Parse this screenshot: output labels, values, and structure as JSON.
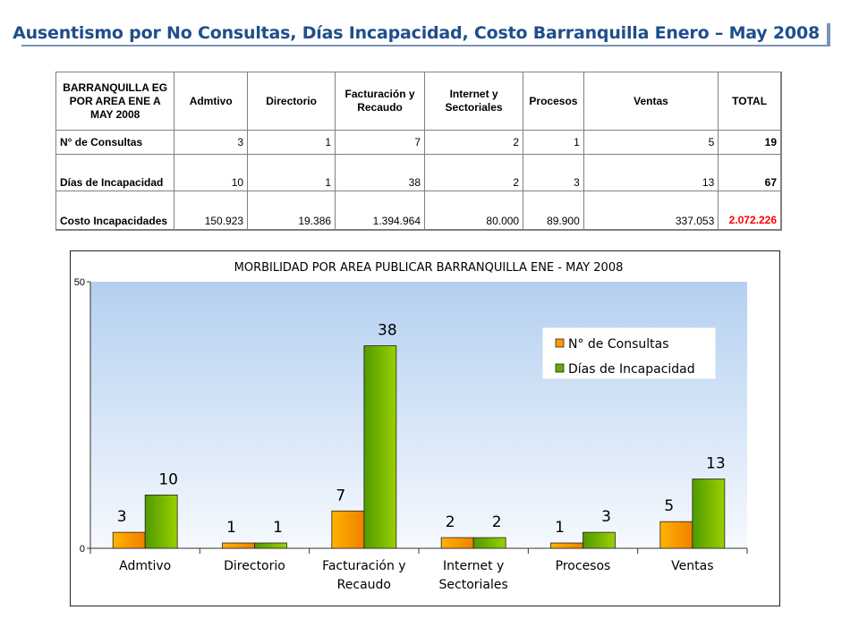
{
  "page": {
    "title": "Ausentismo por No Consultas, Días Incapacidad, Costo Barranquilla Enero – May 2008"
  },
  "table": {
    "corner": "BARRANQUILLA EG POR AREA ENE A MAY 2008",
    "headers": [
      "Admtivo",
      "Directorio",
      "Facturación y Recaudo",
      "Internet y Sectoriales",
      "Procesos",
      "Ventas",
      "TOTAL"
    ],
    "rows": [
      {
        "label": "N° de Consultas",
        "values": [
          "3",
          "1",
          "7",
          "2",
          "1",
          "5"
        ],
        "total": "19"
      },
      {
        "label": "Días de Incapacidad",
        "values": [
          "10",
          "1",
          "38",
          "2",
          "3",
          "13"
        ],
        "total": "67"
      },
      {
        "label": "Costo Incapacidades",
        "values": [
          "150.923",
          "19.386",
          "1.394.964",
          "80.000",
          "89.900",
          "337.053"
        ],
        "total": "2.072.226"
      }
    ],
    "colors": {
      "total_cost": "#ff0000"
    }
  },
  "chart_data": {
    "type": "bar",
    "title": "MORBILIDAD POR AREA PUBLICAR BARRANQUILLA ENE - MAY 2008",
    "categories": [
      [
        "Admtivo"
      ],
      [
        "Directorio"
      ],
      [
        "Facturación y",
        "Recaudo"
      ],
      [
        "Internet y",
        "Sectoriales"
      ],
      [
        "Procesos"
      ],
      [
        "Ventas"
      ]
    ],
    "series": [
      {
        "name": "N° de Consultas",
        "values": [
          3,
          1,
          7,
          2,
          1,
          5
        ],
        "color": "#ff9900"
      },
      {
        "name": "Días de Incapacidad",
        "values": [
          10,
          1,
          38,
          2,
          3,
          13
        ],
        "color": "#66aa00"
      }
    ],
    "ylim": [
      0,
      50
    ],
    "yticks": [
      0,
      50
    ],
    "legend_position": "top-right",
    "plot_background": "light blue gradient",
    "xlabel": "",
    "ylabel": ""
  }
}
